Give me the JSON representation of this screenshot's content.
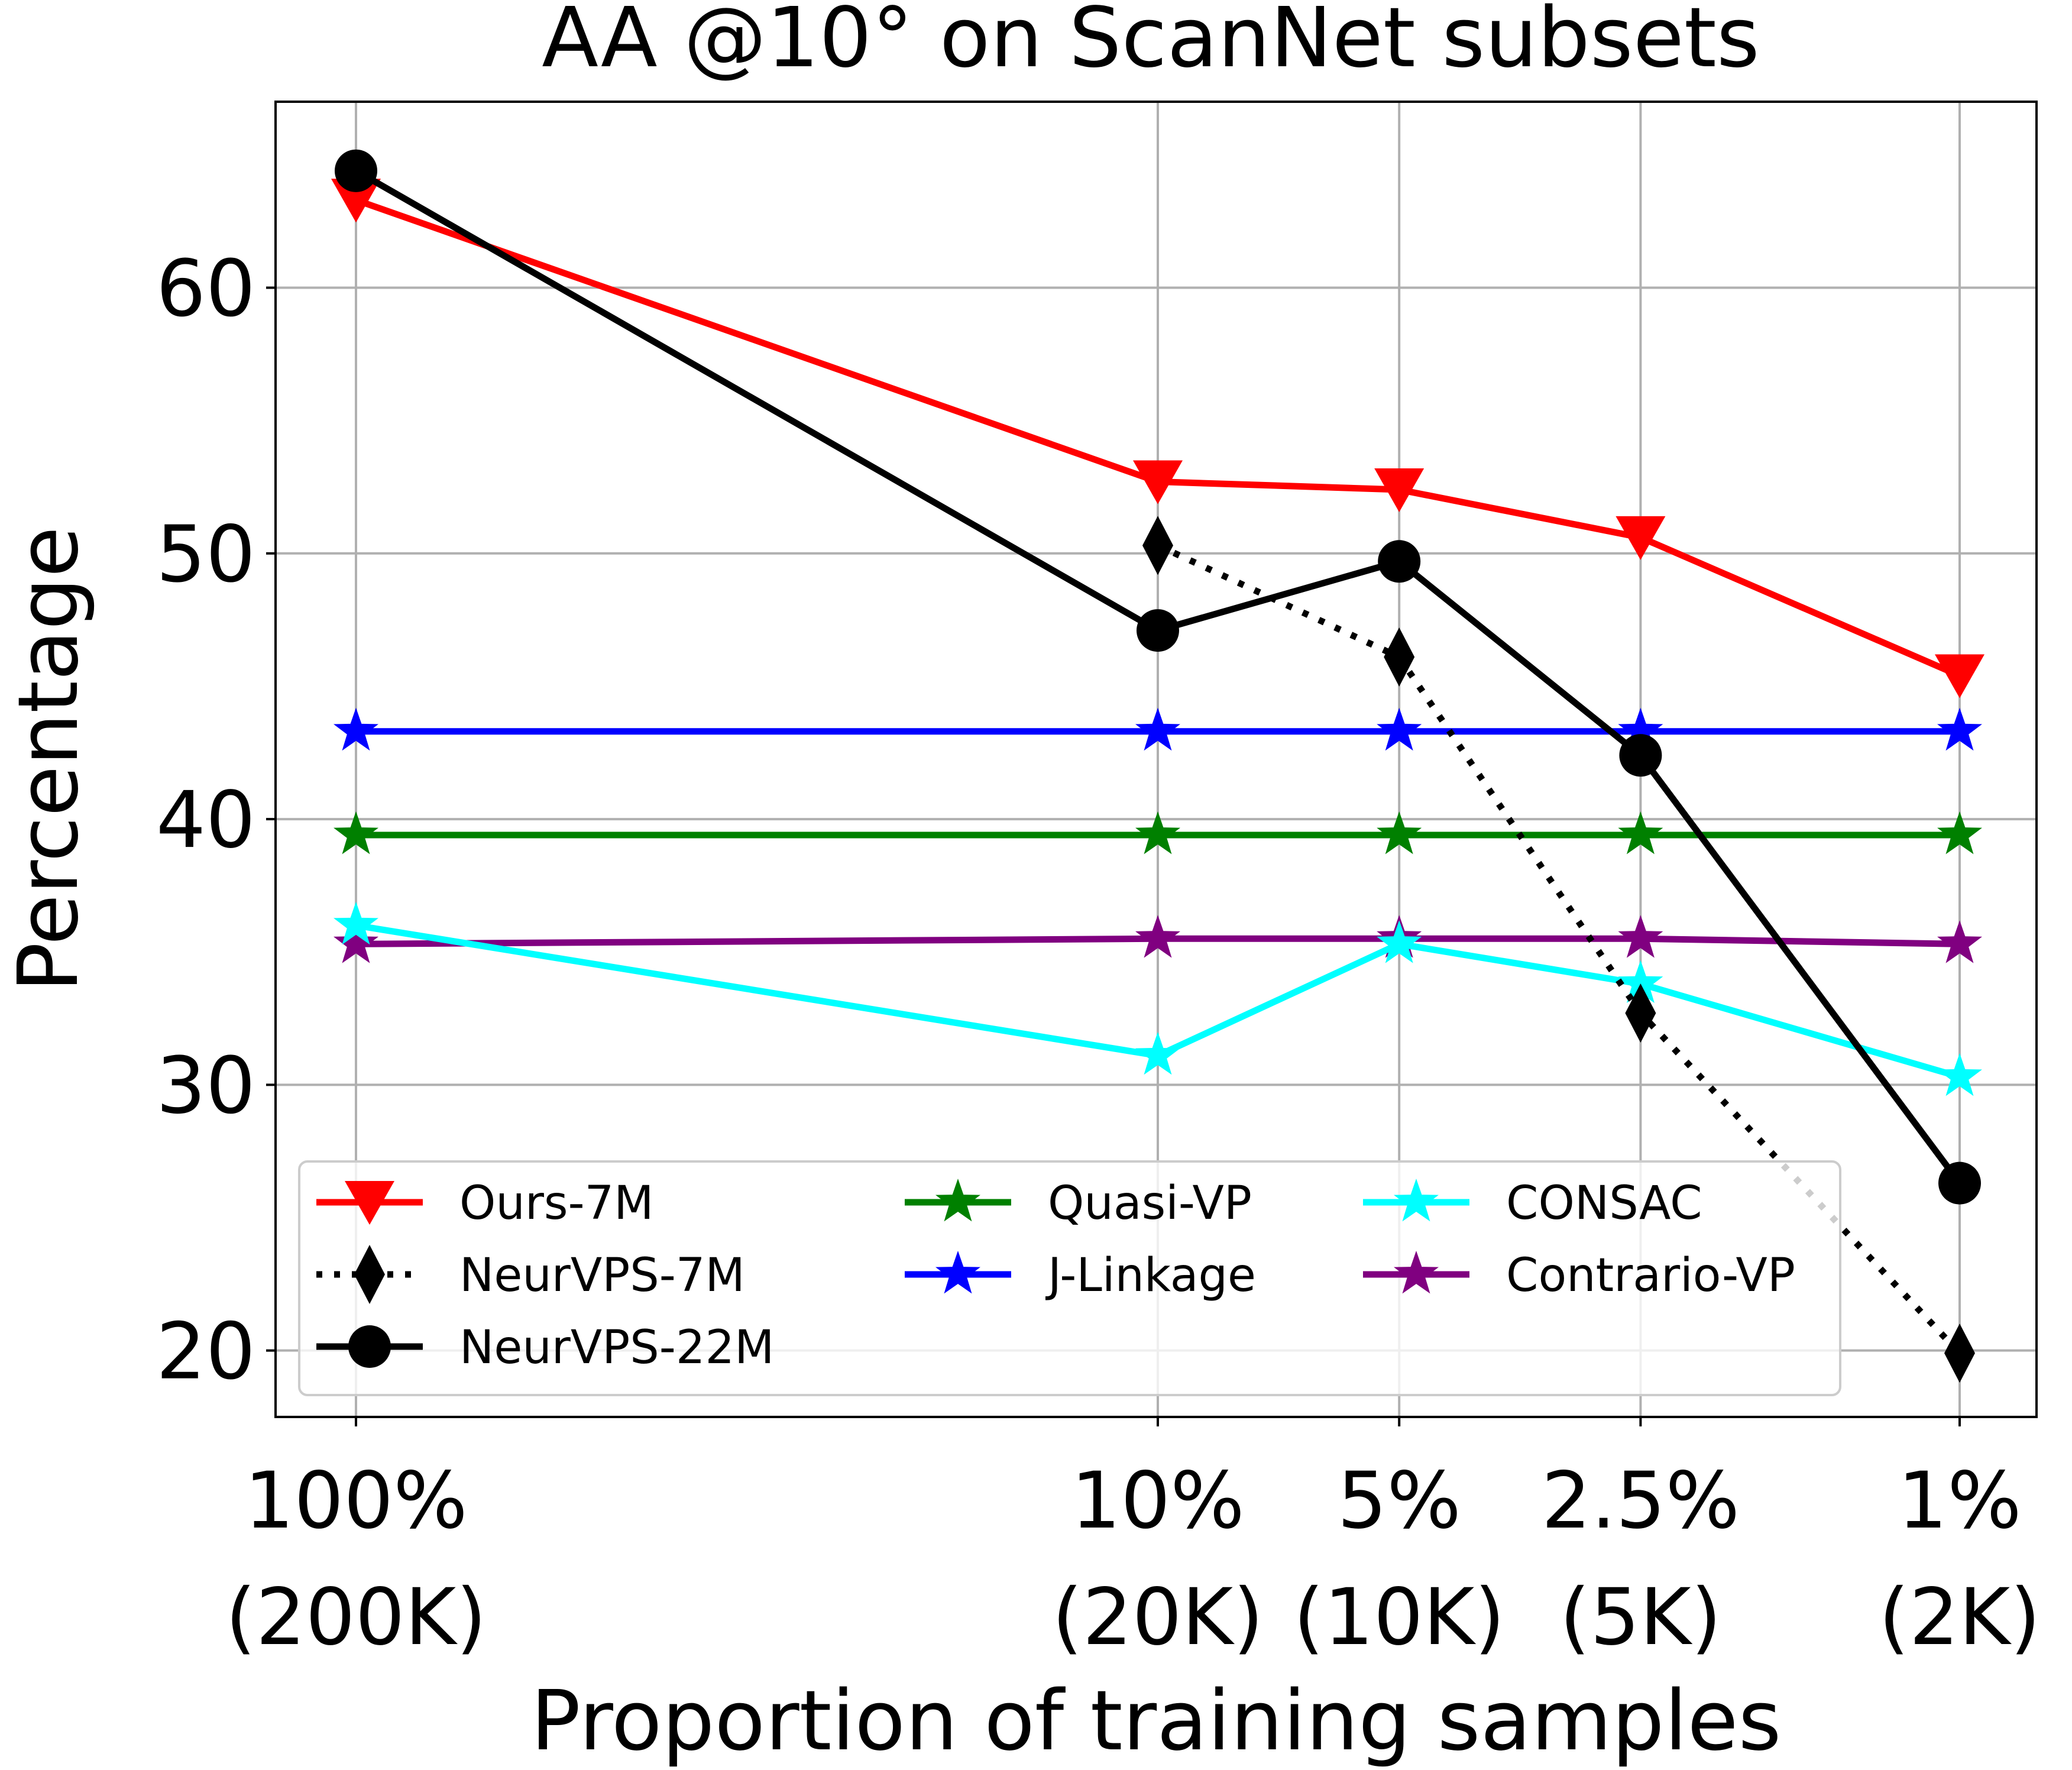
{
  "chart_data": {
    "type": "line",
    "title": "AA @10° on ScanNet subsets",
    "xlabel": "Proportion of training samples",
    "ylabel": "Percentage",
    "categories": [
      {
        "pct": "100%",
        "count": "(200K)"
      },
      {
        "pct": "10%",
        "count": "(20K)"
      },
      {
        "pct": "5%",
        "count": "(10K)"
      },
      {
        "pct": "2.5%",
        "count": "(5K)"
      },
      {
        "pct": "1%",
        "count": "(2K)"
      }
    ],
    "x_scale": "log",
    "x_values": [
      100,
      10,
      5,
      2.5,
      1
    ],
    "yticks": [
      20,
      30,
      40,
      50,
      60
    ],
    "ylim": [
      17.5,
      67.0
    ],
    "grid": true,
    "legend_position": "lower-center",
    "series": [
      {
        "name": "Ours-7M",
        "color": "#ff0000",
        "marker": "triangle-down",
        "dash": "solid",
        "values": [
          63.3,
          52.7,
          52.4,
          50.6,
          45.4
        ]
      },
      {
        "name": "NeurVPS-7M",
        "color": "#000000",
        "marker": "diamond",
        "dash": "dotted",
        "values": [
          null,
          50.3,
          46.1,
          32.7,
          19.9
        ]
      },
      {
        "name": "NeurVPS-22M",
        "color": "#000000",
        "marker": "circle",
        "dash": "solid",
        "values": [
          64.4,
          47.1,
          49.7,
          42.4,
          26.3
        ]
      },
      {
        "name": "Quasi-VP",
        "color": "#008000",
        "marker": "star",
        "dash": "solid",
        "values": [
          39.4,
          39.4,
          39.4,
          39.4,
          39.4
        ]
      },
      {
        "name": "J-Linkage",
        "color": "#0000ff",
        "marker": "star",
        "dash": "solid",
        "values": [
          43.3,
          43.3,
          43.3,
          43.3,
          43.3
        ]
      },
      {
        "name": "CONSAC",
        "color": "#00ffff",
        "marker": "star",
        "dash": "solid",
        "values": [
          36.0,
          31.1,
          35.3,
          33.8,
          30.3
        ]
      },
      {
        "name": "Contrario-VP",
        "color": "#800080",
        "marker": "star",
        "dash": "solid",
        "values": [
          35.3,
          35.5,
          35.5,
          35.5,
          35.3
        ]
      }
    ]
  }
}
